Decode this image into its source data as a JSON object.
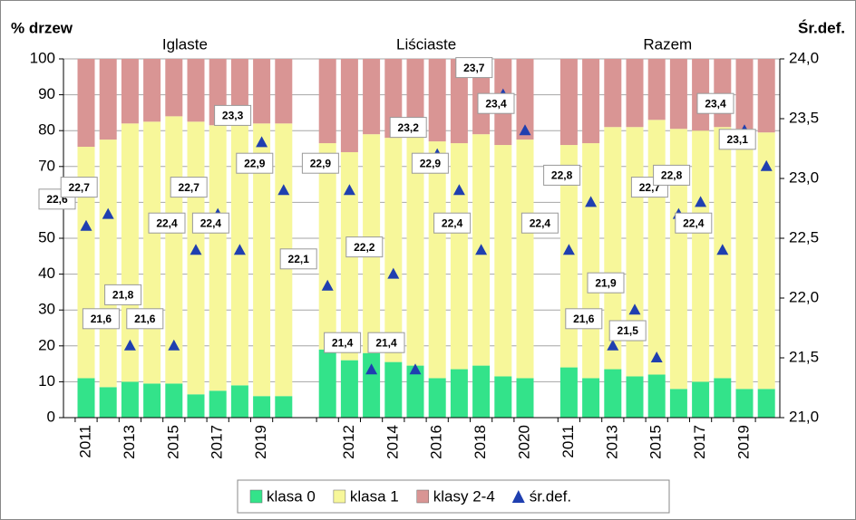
{
  "chart_data": {
    "type": "stacked_bar_scatter",
    "ylabel": "% drzew",
    "y2label": "Śr.def.",
    "group_labels": [
      "Iglaste",
      "Liściaste",
      "Razem"
    ],
    "categories": [
      "2011",
      null,
      "2013",
      null,
      "2015",
      null,
      "2017",
      null,
      "2019",
      null,
      null,
      "2012",
      null,
      "2014",
      null,
      "2016",
      null,
      "2018",
      null,
      "2020",
      "2011",
      null,
      "2013",
      null,
      "2015",
      null,
      "2017",
      null,
      "2019",
      null
    ],
    "series": [
      {
        "name": "klasa 0",
        "color": "#33e38a",
        "values": [
          11,
          8.5,
          10,
          9.5,
          9.5,
          6.5,
          7.5,
          9,
          6,
          6,
          19,
          16,
          18,
          15.5,
          14.5,
          11,
          13.5,
          14.5,
          11.5,
          11,
          14,
          11,
          13.5,
          11.5,
          12,
          8,
          10,
          11,
          8,
          8
        ]
      },
      {
        "name": "klasa 1",
        "color": "#f7f79a",
        "values": [
          64.5,
          69,
          72,
          73,
          74.5,
          76,
          74,
          73.5,
          76,
          76,
          57.5,
          58,
          61,
          62.5,
          67.5,
          66,
          63,
          64.5,
          64.5,
          66.5,
          62,
          65.5,
          67.5,
          69.5,
          71,
          72.5,
          70,
          70,
          72.5,
          71.5
        ]
      },
      {
        "name": "klasy 2-4",
        "color": "#d99594",
        "values": [
          24.5,
          22.5,
          18,
          17.5,
          16,
          17.5,
          18.5,
          17.5,
          18,
          18,
          23.5,
          26,
          21,
          22,
          18,
          23,
          23.5,
          21,
          24,
          22.5,
          24,
          23.5,
          19,
          19,
          17,
          19.5,
          20,
          19,
          19.5,
          20.5
        ]
      },
      {
        "name": "śr.def.",
        "color": "#1f3fb0",
        "axis": "y2",
        "values": [
          22.6,
          22.7,
          21.6,
          21.8,
          21.6,
          22.4,
          22.7,
          22.4,
          23.3,
          22.9,
          22.1,
          22.9,
          21.4,
          22.2,
          21.4,
          23.2,
          22.9,
          22.4,
          23.7,
          23.4,
          22.4,
          22.8,
          21.6,
          21.9,
          21.5,
          22.7,
          22.8,
          22.4,
          23.4,
          23.1
        ],
        "value_labels": [
          "22,6",
          "22,7",
          "21,6",
          "21,8",
          "21,6",
          "22,4",
          "22,7",
          "22,4",
          "23,3",
          "22,9",
          "22,1",
          "22,9",
          "21,4",
          "22,2",
          "21,4",
          "23,2",
          "22,9",
          "22,4",
          "23,7",
          "23,4",
          "22,4",
          "22,8",
          "21,6",
          "21,9",
          "21,5",
          "22,7",
          "22,8",
          "22,4",
          "23,4",
          "23,1"
        ]
      }
    ],
    "ylim": [
      0,
      100
    ],
    "yticks": [
      0,
      10,
      20,
      30,
      40,
      50,
      60,
      70,
      80,
      90,
      100
    ],
    "y2lim": [
      21,
      24
    ],
    "y2ticks": [
      {
        "value": 21,
        "label": "21,0"
      },
      {
        "value": 21.5,
        "label": "21,5"
      },
      {
        "value": 22,
        "label": "22,0"
      },
      {
        "value": 22.5,
        "label": "22,5"
      },
      {
        "value": 23,
        "label": "23,0"
      },
      {
        "value": 23.5,
        "label": "23,5"
      },
      {
        "value": 24,
        "label": "24,0"
      }
    ],
    "grid": true,
    "legend": "bottom"
  }
}
